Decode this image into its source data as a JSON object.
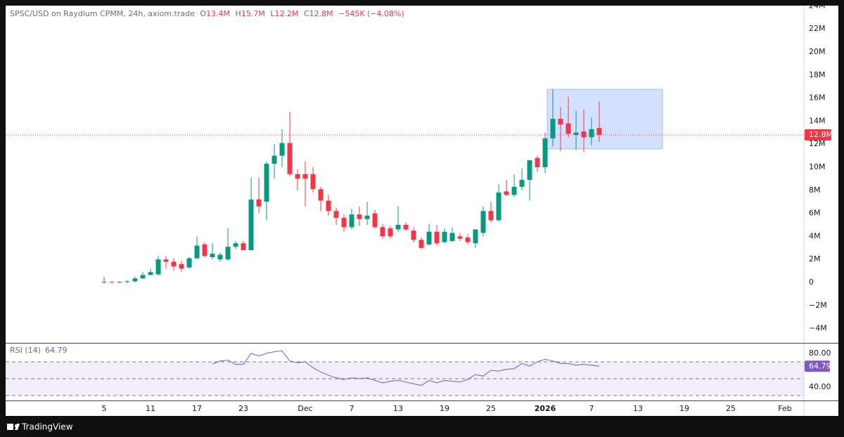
{
  "chart_data": [
    {
      "type": "candlestick",
      "title": "SPSC/USD on Raydium CPMM, 24h, axiom.trade",
      "ohlc_legend": [
        {
          "key": "O",
          "value": "13.4M"
        },
        {
          "key": "H",
          "value": "15.7M"
        },
        {
          "key": "L",
          "value": "12.2M"
        },
        {
          "key": "C",
          "value": "12.8M"
        }
      ],
      "change": "−545K (−4.08%)",
      "up_color": "#089981",
      "down_color": "#f23645",
      "x": [
        0,
        1,
        2,
        3,
        4,
        5,
        6,
        7,
        8,
        9,
        10,
        11,
        12,
        13,
        14,
        15,
        16,
        17,
        18,
        19,
        20,
        21,
        22,
        23,
        24,
        25,
        26,
        27,
        28,
        29,
        30,
        31,
        32,
        33,
        34,
        35,
        36,
        37,
        38,
        39,
        40,
        41,
        42,
        43,
        44,
        45,
        46,
        47,
        48,
        49,
        50,
        51,
        52,
        53,
        54,
        55,
        56,
        57,
        58,
        59,
        60,
        61,
        62,
        63,
        64
      ],
      "open": [
        0,
        0.05,
        0,
        0.05,
        0.1,
        0.35,
        0.65,
        0.7,
        2.0,
        1.8,
        1.6,
        1.3,
        2.1,
        3.3,
        2.2,
        2.0,
        2.0,
        3.1,
        3.4,
        2.8,
        7.2,
        7.0,
        10.3,
        11.0,
        12.1,
        9.4,
        9.4,
        9.4,
        8.1,
        7.1,
        6.2,
        5.6,
        4.8,
        5.9,
        5.5,
        6.0,
        4.8,
        4.7,
        4.6,
        5.0,
        4.5,
        3.7,
        3.3,
        4.4,
        3.5,
        3.6,
        4.0,
        3.9,
        3.4,
        4.3,
        6.2,
        5.4,
        7.9,
        7.6,
        8.3,
        8.9,
        10.8,
        10.0,
        12.5,
        14.2,
        13.8,
        12.8,
        13.1,
        12.6,
        13.4
      ],
      "high": [
        0.5,
        0.1,
        0.1,
        0.2,
        0.5,
        0.9,
        1.2,
        2.3,
        2.3,
        2.1,
        1.9,
        2.2,
        4.0,
        3.5,
        3.4,
        2.6,
        4.7,
        3.6,
        3.6,
        9.1,
        9.1,
        10.5,
        12.0,
        13.3,
        14.8,
        9.8,
        10.5,
        10.0,
        8.3,
        7.6,
        6.5,
        5.9,
        6.4,
        6.6,
        7.0,
        6.3,
        5.1,
        4.9,
        6.6,
        5.2,
        4.8,
        3.9,
        5.1,
        5.0,
        4.7,
        4.8,
        4.3,
        4.2,
        4.6,
        6.6,
        7.0,
        8.5,
        8.9,
        9.4,
        9.9,
        10.6,
        11.0,
        13.0,
        16.8,
        15.2,
        16.1,
        14.9,
        15.0,
        14.3,
        15.7
      ],
      "low": [
        -0.1,
        -0.05,
        -0.05,
        -0.05,
        0,
        0.3,
        0.6,
        0.6,
        1.2,
        1.0,
        0.9,
        1.2,
        2.0,
        2.2,
        2.0,
        1.8,
        1.9,
        2.9,
        2.8,
        2.8,
        6.0,
        5.4,
        9.0,
        10.0,
        9.2,
        8.0,
        6.6,
        7.8,
        6.2,
        5.8,
        5.0,
        4.4,
        4.6,
        4.9,
        5.0,
        4.7,
        3.8,
        3.8,
        4.4,
        4.5,
        3.5,
        2.9,
        3.2,
        3.2,
        3.4,
        3.5,
        3.6,
        3.3,
        3.0,
        4.0,
        5.2,
        5.3,
        7.5,
        7.4,
        8.0,
        7.1,
        9.6,
        9.5,
        11.8,
        11.4,
        12.6,
        11.5,
        11.3,
        11.9,
        12.2
      ],
      "close": [
        0.05,
        0,
        0.05,
        0.1,
        0.35,
        0.65,
        0.9,
        2.0,
        1.8,
        1.4,
        1.2,
        2.1,
        3.2,
        2.3,
        2.5,
        2.4,
        3.1,
        3.4,
        2.8,
        7.2,
        6.6,
        10.3,
        11.0,
        12.1,
        9.4,
        9.0,
        9.0,
        8.1,
        7.1,
        6.2,
        5.6,
        4.8,
        5.9,
        5.5,
        5.8,
        4.8,
        4.0,
        4.0,
        5.0,
        4.6,
        3.7,
        3.0,
        4.4,
        3.4,
        4.4,
        4.3,
        3.8,
        3.5,
        4.6,
        6.2,
        5.4,
        7.8,
        7.6,
        8.3,
        8.9,
        10.6,
        10.0,
        12.5,
        14.2,
        13.7,
        12.9,
        13.0,
        12.6,
        13.3,
        12.8
      ],
      "last_price": {
        "value": 12.8,
        "label": "12.8M"
      },
      "xlim": [
        -12.73,
        90.45
      ],
      "xticks": [
        {
          "value": 0,
          "label": "5"
        },
        {
          "value": 6,
          "label": "11"
        },
        {
          "value": 12,
          "label": "17"
        },
        {
          "value": 18,
          "label": "23"
        },
        {
          "value": 26,
          "label": "Dec"
        },
        {
          "value": 32,
          "label": "7"
        },
        {
          "value": 38,
          "label": "13"
        },
        {
          "value": 44,
          "label": "19"
        },
        {
          "value": 50,
          "label": "25"
        },
        {
          "value": 57,
          "label": "2026"
        },
        {
          "value": 63,
          "label": "7"
        },
        {
          "value": 69,
          "label": "13"
        },
        {
          "value": 75,
          "label": "19"
        },
        {
          "value": 81,
          "label": "25"
        },
        {
          "value": 88,
          "label": "Feb"
        }
      ],
      "ylim": [
        -5.24,
        24.02
      ],
      "yticks": [
        {
          "value": -4,
          "label": "−4M"
        },
        {
          "value": -2,
          "label": "−2M"
        },
        0,
        {
          "value": 2,
          "label": "2M"
        },
        {
          "value": 4,
          "label": "4M"
        },
        {
          "value": 6,
          "label": "6M"
        },
        {
          "value": 8,
          "label": "8M"
        },
        {
          "value": 10,
          "label": "10M"
        },
        {
          "value": 12,
          "label": "12M"
        },
        {
          "value": 14,
          "label": "14M"
        },
        {
          "value": 16,
          "label": "16M"
        },
        {
          "value": 18,
          "label": "18M"
        },
        {
          "value": 20,
          "label": "20M"
        },
        {
          "value": 22,
          "label": "22M"
        },
        {
          "value": 24,
          "label": "24M"
        }
      ],
      "grid": false
    },
    {
      "type": "line",
      "title": "RSI (14)",
      "current": {
        "value": 64.79,
        "label": "64.79"
      },
      "color": "#7e57c2",
      "x": [
        0,
        1,
        2,
        3,
        4,
        5,
        6,
        7,
        8,
        9,
        10,
        11,
        12,
        13,
        14,
        15,
        16,
        17,
        18,
        19,
        20,
        21,
        22,
        23,
        24,
        25,
        26,
        27,
        28,
        29,
        30,
        31,
        32,
        33,
        34,
        35,
        36,
        37,
        38,
        39,
        40,
        41,
        42,
        43,
        44,
        45,
        46,
        47,
        48,
        49,
        50,
        51,
        52,
        53,
        54,
        55,
        56,
        57,
        58,
        59,
        60,
        61,
        62,
        63,
        64
      ],
      "values": [
        null,
        null,
        null,
        null,
        null,
        null,
        null,
        null,
        null,
        null,
        null,
        null,
        null,
        null,
        67.5,
        71,
        72,
        67,
        67,
        80,
        77,
        80,
        82,
        83,
        71,
        69,
        70,
        63,
        58,
        54,
        51,
        49,
        51,
        50,
        51,
        48,
        45,
        47,
        48,
        46,
        44,
        42,
        48,
        45,
        48,
        47,
        46,
        49,
        55,
        53,
        60,
        59,
        61,
        62,
        68,
        65,
        70,
        73,
        71,
        68,
        68,
        66,
        67,
        66,
        64.79
      ],
      "levels": [
        30,
        50,
        70
      ],
      "xlim": [
        -12.73,
        90.45
      ],
      "ylim": [
        24.17,
        90.83
      ],
      "yticks": [
        {
          "value": 80,
          "label": "80.00"
        },
        {
          "value": 40,
          "label": "40.00"
        }
      ]
    }
  ],
  "footer": {
    "brand": "TradingView"
  }
}
